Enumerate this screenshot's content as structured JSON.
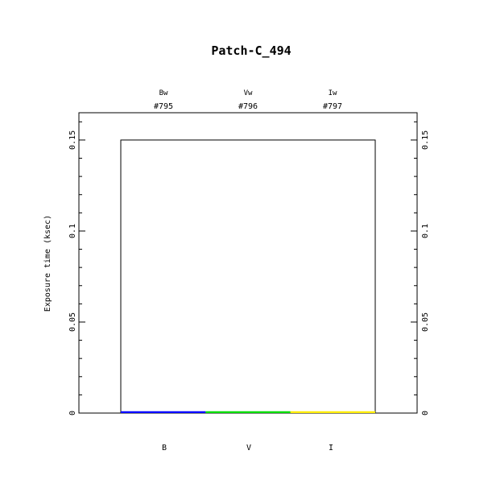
{
  "chart_data": {
    "type": "bar",
    "title": "Patch-C_494",
    "ylabel": "Exposure time (ksec)",
    "xlabel": "",
    "ylim": [
      0,
      0.165
    ],
    "yticks": [
      "0",
      "0.05",
      "0.1",
      "0.15"
    ],
    "yticks_values": [
      0,
      0.05,
      0.1,
      0.15
    ],
    "grid": false,
    "categories": [
      "B",
      "V",
      "I"
    ],
    "filters": [
      "Bw",
      "Vw",
      "Iw"
    ],
    "ids": [
      "#795",
      "#796",
      "#797"
    ],
    "values": [
      0.001,
      0.001,
      0.001
    ],
    "colors": [
      "#0000ff",
      "#00dd00",
      "#ffee00"
    ],
    "outline_value": 0.15
  }
}
